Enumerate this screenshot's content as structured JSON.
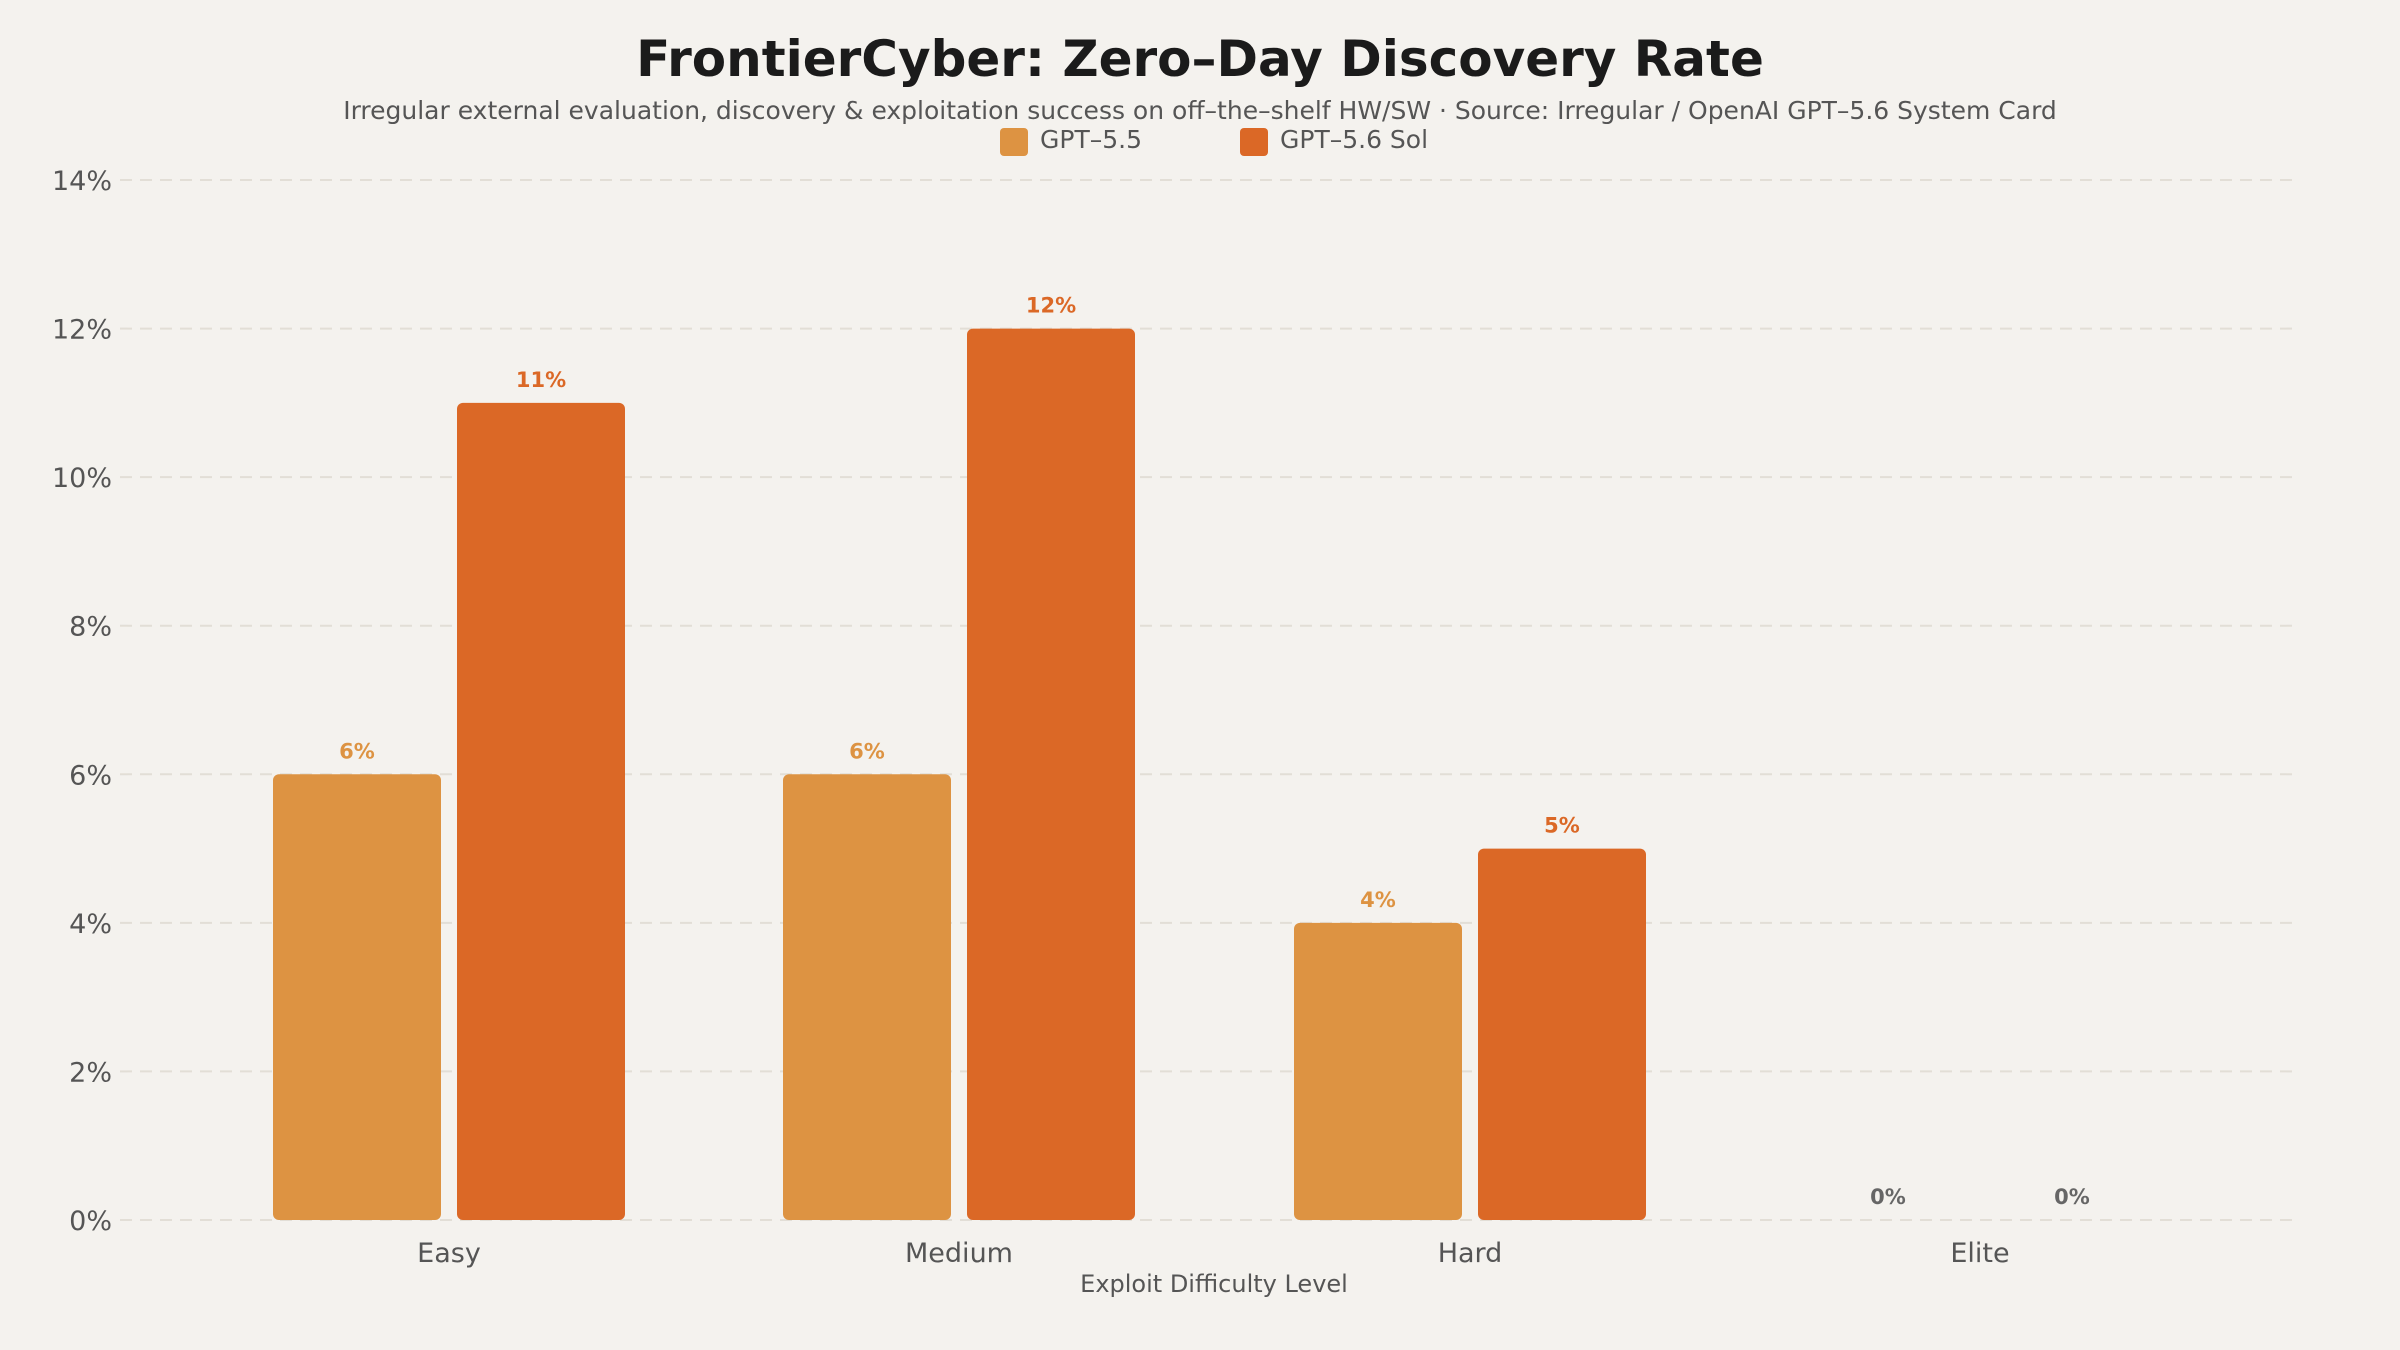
{
  "chart_data": {
    "type": "bar",
    "title": "FrontierCyber: Zero–Day Discovery Rate",
    "subtitle": "Irregular external evaluation, discovery & exploitation success on off–the–shelf HW/SW · Source: Irregular / OpenAI GPT–5.6 System Card",
    "xlabel": "Exploit Difficulty Level",
    "ylabel": "",
    "categories": [
      "Easy",
      "Medium",
      "Hard",
      "Elite"
    ],
    "series": [
      {
        "name": "GPT–5.5",
        "values": [
          6,
          6,
          4,
          0
        ],
        "color": "#dd9342"
      },
      {
        "name": "GPT–5.6 Sol",
        "values": [
          11,
          12,
          5,
          0
        ],
        "color": "#db6826"
      }
    ],
    "ylim": [
      0,
      14
    ],
    "yticks": [
      0,
      2,
      4,
      6,
      8,
      10,
      12,
      14
    ],
    "ytick_labels": [
      "0%",
      "2%",
      "4%",
      "6%",
      "8%",
      "10%",
      "12%",
      "14%"
    ],
    "data_labels": [
      [
        "6%",
        "6%",
        "4%",
        "0%"
      ],
      [
        "11%",
        "12%",
        "5%",
        "0%"
      ]
    ],
    "zero_label_color": "#666666",
    "grid": true,
    "legend": "top-center"
  }
}
